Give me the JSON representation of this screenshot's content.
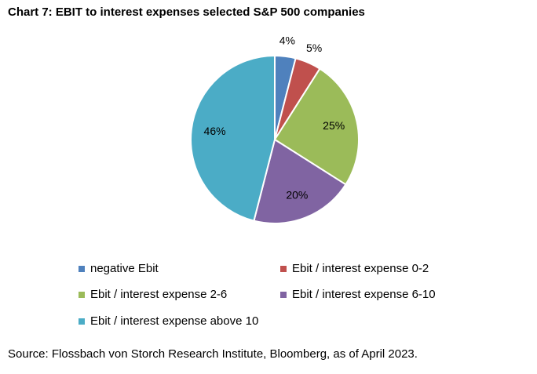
{
  "chart_data": {
    "type": "pie",
    "title": "Chart 7: EBIT to interest expenses selected S&P 500 companies",
    "categories": [
      "negative Ebit",
      "Ebit / interest expense 0-2",
      "Ebit / interest expense 2-6",
      "Ebit / interest expense 6-10",
      "Ebit / interest expense above 10"
    ],
    "values": [
      4,
      5,
      25,
      20,
      46
    ],
    "labels": [
      "4%",
      "5%",
      "25%",
      "20%",
      "46%"
    ],
    "colors": [
      "#4f81bd",
      "#c0504d",
      "#9bbb59",
      "#8064a2",
      "#4bacc6"
    ],
    "legend_position": "bottom"
  },
  "source": "Source: Flossbach von Storch Research Institute, Bloomberg, as of April 2023."
}
